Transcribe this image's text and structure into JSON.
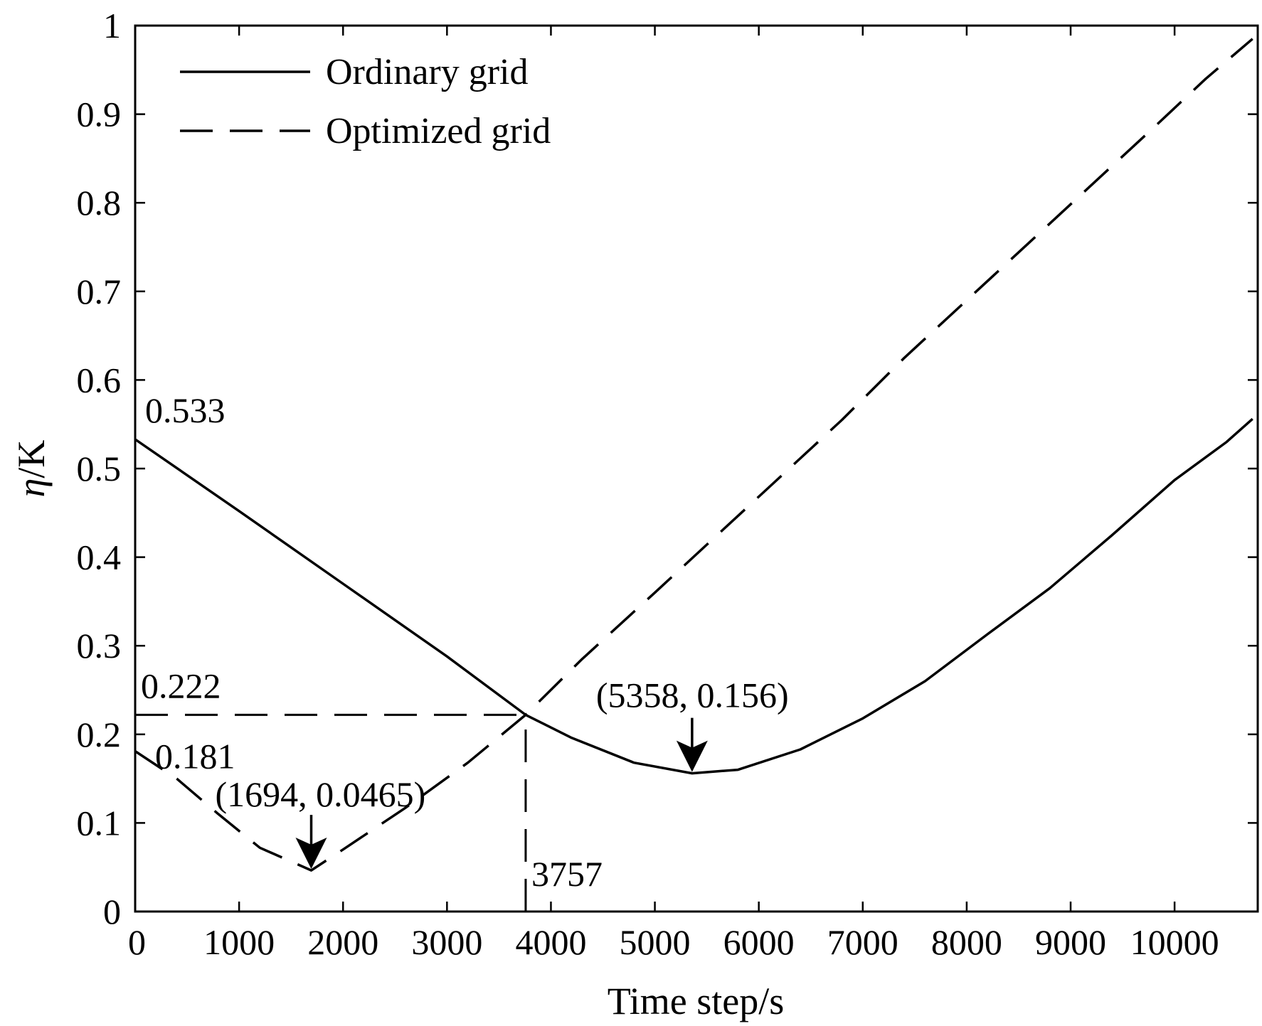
{
  "chart_data": {
    "type": "line",
    "title": "",
    "xlabel": "Time step/s",
    "ylabel_symbol": "η",
    "ylabel_unit": "/K",
    "xlim": [
      0,
      10800
    ],
    "ylim": [
      0,
      1
    ],
    "xticks": [
      0,
      1000,
      2000,
      3000,
      4000,
      5000,
      6000,
      7000,
      8000,
      9000,
      10000
    ],
    "yticks": [
      0,
      0.1,
      0.2,
      0.3,
      0.4,
      0.5,
      0.6,
      0.7,
      0.8,
      0.9,
      1
    ],
    "xtick_labels": [
      "0",
      "1000",
      "2000",
      "3000",
      "4000",
      "5000",
      "6000",
      "7000",
      "8000",
      "9000",
      "10000"
    ],
    "ytick_labels": [
      "0",
      "0.1",
      "0.2",
      "0.3",
      "0.4",
      "0.5",
      "0.6",
      "0.7",
      "0.8",
      "0.9",
      "1"
    ],
    "grid": false,
    "legend_position": "top-left",
    "series": [
      {
        "name": "Ordinary grid",
        "style": "solid",
        "color": "#000000",
        "points": [
          [
            0,
            0.533
          ],
          [
            1000,
            0.452
          ],
          [
            2000,
            0.37
          ],
          [
            3000,
            0.288
          ],
          [
            3757,
            0.222
          ],
          [
            4200,
            0.196
          ],
          [
            4800,
            0.168
          ],
          [
            5358,
            0.156
          ],
          [
            5800,
            0.16
          ],
          [
            6400,
            0.183
          ],
          [
            7000,
            0.218
          ],
          [
            7600,
            0.26
          ],
          [
            8200,
            0.313
          ],
          [
            8800,
            0.365
          ],
          [
            9400,
            0.425
          ],
          [
            10000,
            0.487
          ],
          [
            10500,
            0.53
          ],
          [
            10750,
            0.556
          ]
        ]
      },
      {
        "name": "Optimized grid",
        "style": "dashed",
        "color": "#000000",
        "points": [
          [
            0,
            0.181
          ],
          [
            400,
            0.15
          ],
          [
            800,
            0.11
          ],
          [
            1200,
            0.072
          ],
          [
            1694,
            0.0465
          ],
          [
            2000,
            0.07
          ],
          [
            2600,
            0.117
          ],
          [
            3200,
            0.168
          ],
          [
            3757,
            0.222
          ],
          [
            4300,
            0.285
          ],
          [
            5000,
            0.36
          ],
          [
            5600,
            0.425
          ],
          [
            6200,
            0.49
          ],
          [
            6800,
            0.555
          ],
          [
            7400,
            0.625
          ],
          [
            8000,
            0.69
          ],
          [
            8600,
            0.755
          ],
          [
            9200,
            0.82
          ],
          [
            9800,
            0.885
          ],
          [
            10300,
            0.94
          ],
          [
            10750,
            0.985
          ]
        ]
      }
    ],
    "reference_lines": [
      {
        "type": "horizontal",
        "y": 0.222,
        "x_from": 0,
        "x_to": 3757,
        "style": "dashed"
      },
      {
        "type": "vertical",
        "x": 3757,
        "y_from": 0,
        "y_to": 0.222,
        "style": "dashed"
      }
    ],
    "annotations": [
      {
        "text": "0.533",
        "x": 0,
        "y": 0.533
      },
      {
        "text": "0.222",
        "x": 0,
        "y": 0.222
      },
      {
        "text": "0.181",
        "x": 0,
        "y": 0.181
      },
      {
        "text": "3757",
        "x": 3757,
        "y": 0
      },
      {
        "text": "(1694, 0.0465)",
        "x": 1694,
        "y": 0.0465,
        "arrow": true
      },
      {
        "text": "(5358, 0.156)",
        "x": 5358,
        "y": 0.156,
        "arrow": true
      }
    ]
  }
}
